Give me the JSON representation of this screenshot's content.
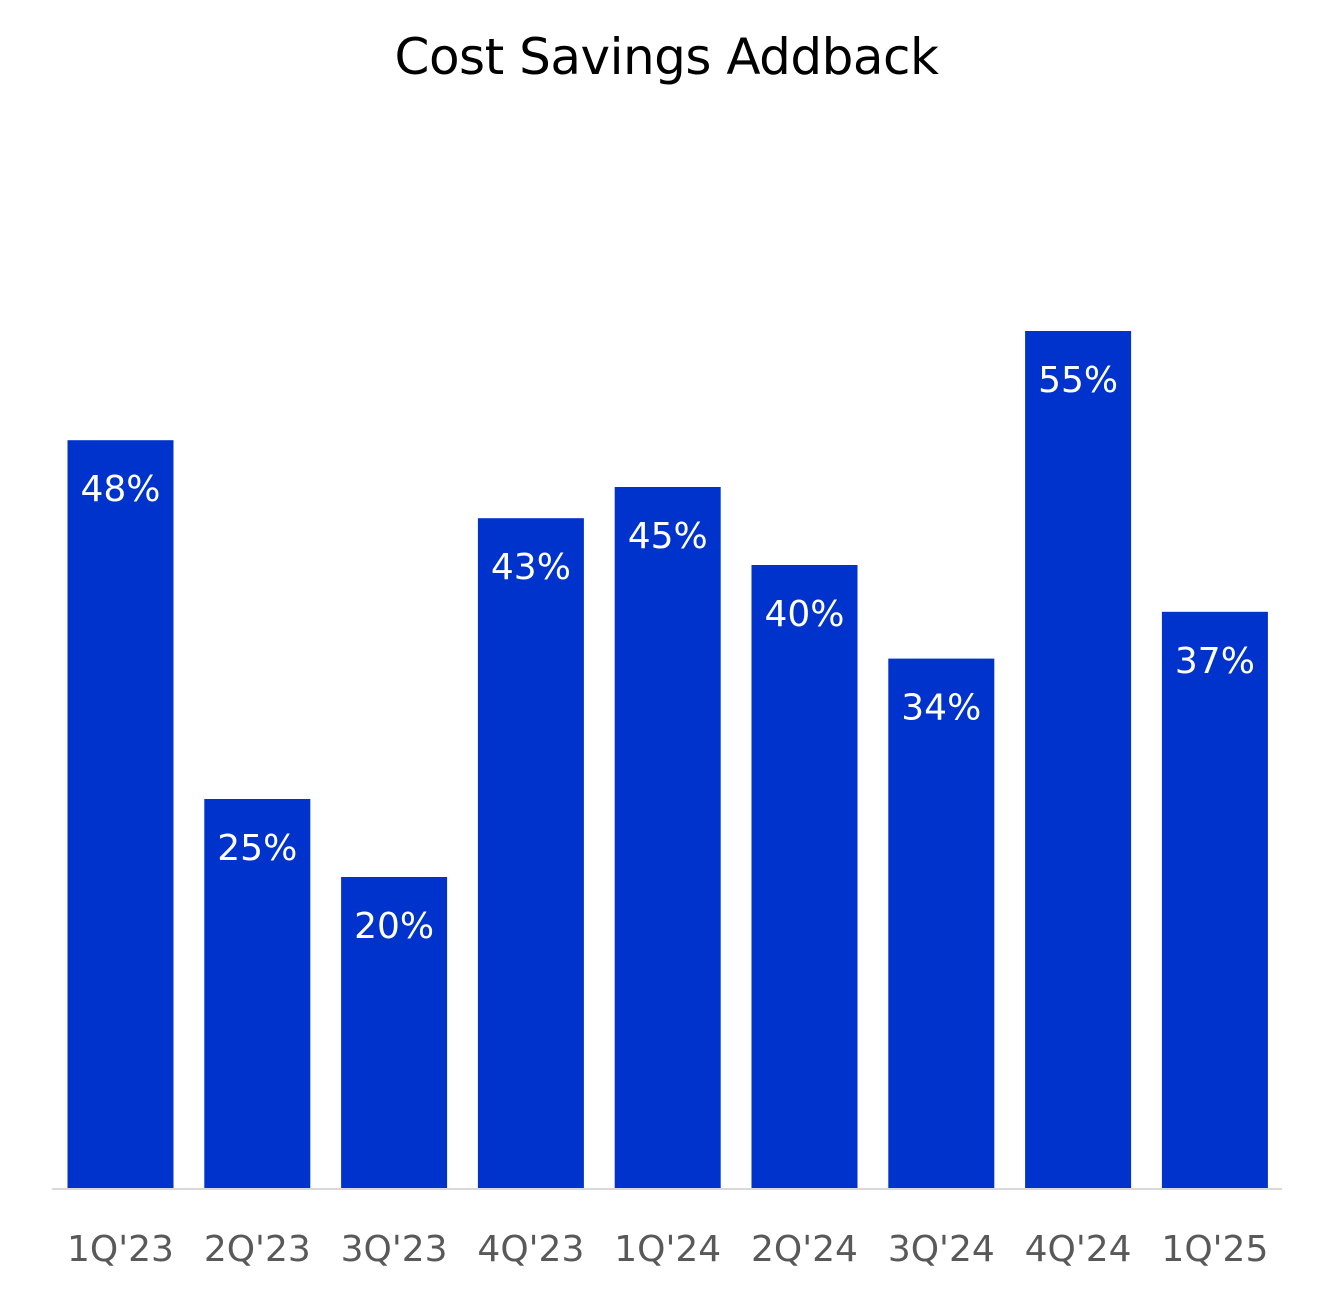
{
  "chart_data": {
    "type": "bar",
    "title": "Cost Savings Addback",
    "categories": [
      "1Q'23",
      "2Q'23",
      "3Q'23",
      "4Q'23",
      "1Q'24",
      "2Q'24",
      "3Q'24",
      "4Q'24",
      "1Q'25"
    ],
    "values": [
      48,
      25,
      20,
      43,
      45,
      40,
      34,
      55,
      37
    ],
    "data_labels": [
      "48%",
      "25%",
      "20%",
      "43%",
      "45%",
      "40%",
      "34%",
      "55%",
      "37%"
    ],
    "unit": "%",
    "ylim": [
      0,
      55
    ],
    "grid": false,
    "legend": "none",
    "bar_color": "#0033CC",
    "axis_color": "#D9D9D9",
    "label_color": "#FFFFFF",
    "tick_color": "#595959"
  }
}
